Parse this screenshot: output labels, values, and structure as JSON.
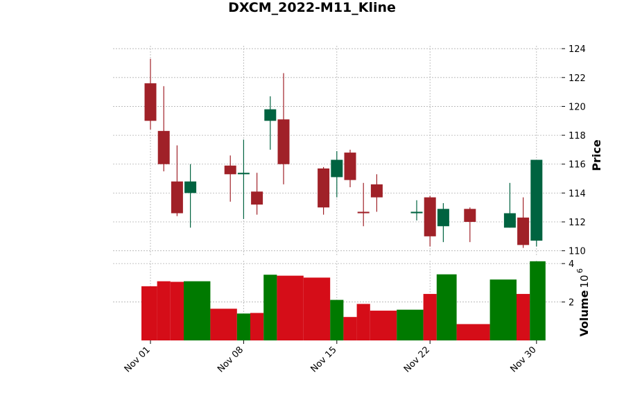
{
  "chart_data": {
    "type": "candlestick",
    "title": "DXCM_2022-M11_Kline",
    "price_axis": {
      "label": "Price",
      "ylim": [
        109.6,
        124.2
      ],
      "ticks": [
        110,
        112,
        114,
        116,
        118,
        120,
        122,
        124
      ],
      "tick_labels": [
        "110",
        "112",
        "114",
        "116",
        "118",
        "120",
        "122",
        "124"
      ]
    },
    "volume_axis": {
      "label": "Volume",
      "exponent_label": "10",
      "exponent_power": "6",
      "ylim": [
        0,
        4.15
      ],
      "ticks": [
        2,
        4
      ],
      "tick_labels": [
        "2",
        "4"
      ]
    },
    "x_axis": {
      "tick_dates": [
        "2022-11-01",
        "2022-11-08",
        "2022-11-15",
        "2022-11-22",
        "2022-11-30"
      ],
      "tick_labels": [
        "Nov 01",
        "Nov 08",
        "Nov 15",
        "Nov 22",
        "Nov 30"
      ]
    },
    "grid": true,
    "colors": {
      "up_candle": "#006340",
      "down_candle": "#a02128",
      "up_volume": "#007a00",
      "down_volume": "#d50d18"
    },
    "candles": [
      {
        "date": "2022-11-01",
        "open": 121.6,
        "high": 123.3,
        "low": 118.4,
        "close": 119.0,
        "volume": 2.82
      },
      {
        "date": "2022-11-02",
        "open": 118.3,
        "high": 121.4,
        "low": 115.5,
        "close": 116.0,
        "volume": 3.08
      },
      {
        "date": "2022-11-03",
        "open": 114.8,
        "high": 117.3,
        "low": 112.4,
        "close": 112.6,
        "volume": 3.05
      },
      {
        "date": "2022-11-04",
        "open": 114.0,
        "high": 116.0,
        "low": 111.6,
        "close": 114.8,
        "volume": 3.08
      },
      {
        "date": "2022-11-07",
        "open": 115.9,
        "high": 116.6,
        "low": 113.4,
        "close": 115.3,
        "volume": 1.65
      },
      {
        "date": "2022-11-08",
        "open": 115.3,
        "high": 117.7,
        "low": 112.2,
        "close": 115.4,
        "volume": 1.4
      },
      {
        "date": "2022-11-09",
        "open": 114.1,
        "high": 115.4,
        "low": 112.5,
        "close": 113.2,
        "volume": 1.43
      },
      {
        "date": "2022-11-10",
        "open": 119.0,
        "high": 120.7,
        "low": 117.0,
        "close": 119.8,
        "volume": 3.42
      },
      {
        "date": "2022-11-11",
        "open": 119.1,
        "high": 122.3,
        "low": 114.6,
        "close": 116.0,
        "volume": 3.37
      },
      {
        "date": "2022-11-14",
        "open": 115.7,
        "high": 115.8,
        "low": 112.5,
        "close": 113.0,
        "volume": 3.27
      },
      {
        "date": "2022-11-15",
        "open": 115.1,
        "high": 116.9,
        "low": 113.7,
        "close": 116.3,
        "volume": 2.11
      },
      {
        "date": "2022-11-16",
        "open": 116.8,
        "high": 117.0,
        "low": 114.4,
        "close": 114.9,
        "volume": 1.22
      },
      {
        "date": "2022-11-17",
        "open": 112.7,
        "high": 114.7,
        "low": 111.7,
        "close": 112.6,
        "volume": 1.9
      },
      {
        "date": "2022-11-18",
        "open": 114.6,
        "high": 115.3,
        "low": 112.7,
        "close": 113.7,
        "volume": 1.55
      },
      {
        "date": "2022-11-21",
        "open": 112.6,
        "high": 113.5,
        "low": 112.1,
        "close": 112.7,
        "volume": 1.6
      },
      {
        "date": "2022-11-22",
        "open": 113.7,
        "high": 113.8,
        "low": 110.3,
        "close": 111.0,
        "volume": 2.42
      },
      {
        "date": "2022-11-23",
        "open": 111.7,
        "high": 113.3,
        "low": 110.6,
        "close": 112.9,
        "volume": 3.44
      },
      {
        "date": "2022-11-25",
        "open": 112.9,
        "high": 113.0,
        "low": 110.6,
        "close": 112.0,
        "volume": 0.85
      },
      {
        "date": "2022-11-28",
        "open": 111.6,
        "high": 114.7,
        "low": 111.6,
        "close": 112.6,
        "volume": 3.17
      },
      {
        "date": "2022-11-29",
        "open": 112.3,
        "high": 113.7,
        "low": 110.2,
        "close": 110.4,
        "volume": 2.42
      },
      {
        "date": "2022-11-30",
        "open": 110.7,
        "high": 116.3,
        "low": 110.3,
        "close": 116.3,
        "volume": 4.12
      }
    ]
  }
}
